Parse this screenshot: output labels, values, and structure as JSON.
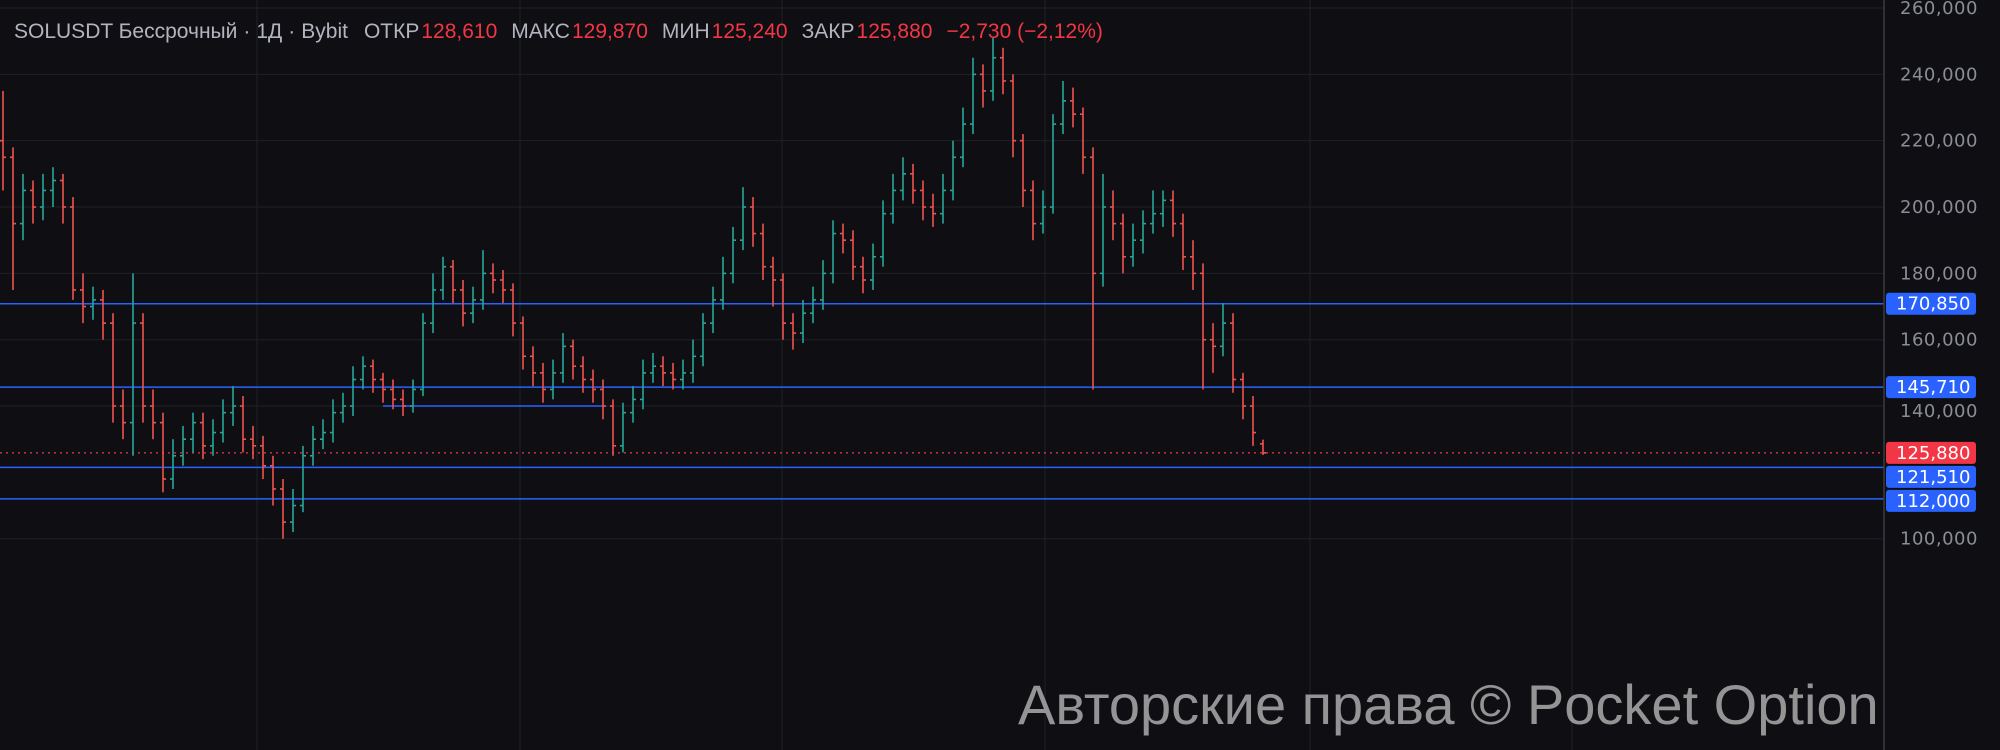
{
  "header": {
    "symbol": "SOLUSDT Бессрочный",
    "interval": "1Д",
    "exchange": "Bybit",
    "sep": "·",
    "open_label": "ОТКР",
    "open": "128,610",
    "high_label": "МАКС",
    "high": "129,870",
    "low_label": "МИН",
    "low": "125,240",
    "close_label": "ЗАКР",
    "close": "125,880",
    "change": "−2,730 (−2,12%)"
  },
  "watermark": "Авторские права © Pocket Option",
  "colors": {
    "up": "#26a69a",
    "down": "#ef5350",
    "level": "#2962ff",
    "last": "#f23645",
    "background": "#0f0f13",
    "grid": "#1f2026"
  },
  "chart_data": {
    "type": "ohlc",
    "ylim": [
      95000,
      262000
    ],
    "grid": true,
    "y_ticks": [
      100000,
      140000,
      160000,
      180000,
      200000,
      220000,
      240000,
      260000
    ],
    "y_tick_labels": [
      "100,000",
      "140,000",
      "160,000",
      "180,000",
      "200,000",
      "220,000",
      "240,000",
      "260,000"
    ],
    "levels": [
      {
        "value": 170850,
        "label": "170,850"
      },
      {
        "value": 145710,
        "label": "145,710"
      },
      {
        "value": 121510,
        "label": "121,510"
      },
      {
        "value": 112000,
        "label": "112,000"
      }
    ],
    "segment_level": {
      "value": 140000,
      "from_bar": 38,
      "to_bar": 60
    },
    "last_price": {
      "value": 125880,
      "label": "125,880"
    },
    "ohlc": [
      [
        220000,
        235000,
        205000,
        215000
      ],
      [
        215000,
        218000,
        175000,
        195000
      ],
      [
        195000,
        210000,
        190000,
        205000
      ],
      [
        205000,
        208000,
        195000,
        200000
      ],
      [
        200000,
        210000,
        196000,
        205000
      ],
      [
        205000,
        212000,
        200000,
        208000
      ],
      [
        208000,
        210000,
        195000,
        200000
      ],
      [
        200000,
        203000,
        172000,
        175000
      ],
      [
        175000,
        180000,
        165000,
        170000
      ],
      [
        170000,
        176000,
        166000,
        172000
      ],
      [
        172000,
        175000,
        160000,
        165000
      ],
      [
        165000,
        168000,
        135000,
        140000
      ],
      [
        140000,
        145000,
        130000,
        135000
      ],
      [
        135000,
        180000,
        125000,
        165000
      ],
      [
        165000,
        168000,
        135000,
        140000
      ],
      [
        140000,
        145000,
        130000,
        135000
      ],
      [
        135000,
        138000,
        114000,
        118000
      ],
      [
        118000,
        130000,
        115000,
        125000
      ],
      [
        125000,
        134000,
        122000,
        130000
      ],
      [
        130000,
        138000,
        126000,
        135000
      ],
      [
        135000,
        138000,
        124000,
        128000
      ],
      [
        128000,
        136000,
        125000,
        132000
      ],
      [
        132000,
        142000,
        129000,
        138000
      ],
      [
        138000,
        146000,
        134000,
        140000
      ],
      [
        140000,
        143000,
        126000,
        130000
      ],
      [
        130000,
        134000,
        124000,
        128000
      ],
      [
        128000,
        131000,
        118000,
        122000
      ],
      [
        122000,
        125000,
        110000,
        115000
      ],
      [
        115000,
        118000,
        100000,
        105000
      ],
      [
        105000,
        115000,
        102000,
        110000
      ],
      [
        110000,
        128000,
        108000,
        125000
      ],
      [
        125000,
        134000,
        122000,
        130000
      ],
      [
        130000,
        136000,
        127000,
        132000
      ],
      [
        132000,
        142000,
        129000,
        138000
      ],
      [
        138000,
        144000,
        135000,
        140000
      ],
      [
        140000,
        152000,
        137000,
        148000
      ],
      [
        148000,
        155000,
        145000,
        152000
      ],
      [
        152000,
        154000,
        144000,
        148000
      ],
      [
        148000,
        150000,
        141000,
        145000
      ],
      [
        145000,
        148000,
        139000,
        142000
      ],
      [
        142000,
        145000,
        137000,
        140000
      ],
      [
        140000,
        148000,
        138000,
        145000
      ],
      [
        145000,
        168000,
        143000,
        165000
      ],
      [
        165000,
        180000,
        162000,
        175000
      ],
      [
        175000,
        185000,
        172000,
        182000
      ],
      [
        182000,
        184000,
        171000,
        175000
      ],
      [
        175000,
        178000,
        164000,
        168000
      ],
      [
        168000,
        176000,
        165000,
        172000
      ],
      [
        172000,
        187000,
        169000,
        180000
      ],
      [
        180000,
        183000,
        174000,
        178000
      ],
      [
        178000,
        181000,
        171000,
        175000
      ],
      [
        175000,
        177000,
        161000,
        165000
      ],
      [
        165000,
        167000,
        151000,
        155000
      ],
      [
        155000,
        158000,
        146000,
        150000
      ],
      [
        150000,
        153000,
        141000,
        145000
      ],
      [
        145000,
        154000,
        142000,
        150000
      ],
      [
        150000,
        162000,
        147000,
        158000
      ],
      [
        158000,
        160000,
        148000,
        152000
      ],
      [
        152000,
        155000,
        144000,
        148000
      ],
      [
        148000,
        151000,
        141000,
        145000
      ],
      [
        145000,
        148000,
        136000,
        140000
      ],
      [
        140000,
        142000,
        125000,
        128000
      ],
      [
        128000,
        141000,
        126000,
        138000
      ],
      [
        138000,
        146000,
        135000,
        142000
      ],
      [
        142000,
        154000,
        139000,
        150000
      ],
      [
        150000,
        156000,
        147000,
        152000
      ],
      [
        152000,
        155000,
        146000,
        150000
      ],
      [
        150000,
        153000,
        145000,
        148000
      ],
      [
        148000,
        154000,
        145000,
        150000
      ],
      [
        150000,
        160000,
        147000,
        155000
      ],
      [
        155000,
        168000,
        152000,
        165000
      ],
      [
        165000,
        176000,
        162000,
        172000
      ],
      [
        172000,
        185000,
        169000,
        180000
      ],
      [
        180000,
        194000,
        177000,
        190000
      ],
      [
        190000,
        206000,
        187000,
        200000
      ],
      [
        200000,
        203000,
        188000,
        192000
      ],
      [
        192000,
        195000,
        178000,
        182000
      ],
      [
        182000,
        185000,
        170000,
        178000
      ],
      [
        178000,
        180000,
        160000,
        165000
      ],
      [
        165000,
        168000,
        157000,
        162000
      ],
      [
        162000,
        172000,
        159000,
        168000
      ],
      [
        168000,
        176000,
        165000,
        172000
      ],
      [
        172000,
        184000,
        169000,
        180000
      ],
      [
        180000,
        196000,
        177000,
        192000
      ],
      [
        192000,
        195000,
        186000,
        190000
      ],
      [
        190000,
        193000,
        178000,
        182000
      ],
      [
        182000,
        185000,
        174000,
        178000
      ],
      [
        178000,
        189000,
        175000,
        185000
      ],
      [
        185000,
        202000,
        182000,
        198000
      ],
      [
        198000,
        210000,
        195000,
        205000
      ],
      [
        205000,
        215000,
        202000,
        210000
      ],
      [
        210000,
        213000,
        201000,
        205000
      ],
      [
        205000,
        208000,
        196000,
        200000
      ],
      [
        200000,
        204000,
        194000,
        198000
      ],
      [
        198000,
        210000,
        195000,
        205000
      ],
      [
        205000,
        220000,
        202000,
        215000
      ],
      [
        215000,
        230000,
        212000,
        225000
      ],
      [
        225000,
        245000,
        222000,
        240000
      ],
      [
        240000,
        243000,
        230000,
        235000
      ],
      [
        235000,
        251000,
        232000,
        245000
      ],
      [
        245000,
        248000,
        234000,
        238000
      ],
      [
        238000,
        240000,
        215000,
        220000
      ],
      [
        220000,
        222000,
        200000,
        205000
      ],
      [
        205000,
        208000,
        190000,
        195000
      ],
      [
        195000,
        205000,
        192000,
        200000
      ],
      [
        200000,
        228000,
        198000,
        225000
      ],
      [
        225000,
        238000,
        222000,
        232000
      ],
      [
        232000,
        236000,
        224000,
        228000
      ],
      [
        228000,
        230000,
        210000,
        215000
      ],
      [
        215000,
        218000,
        145000,
        180000
      ],
      [
        180000,
        210000,
        176000,
        200000
      ],
      [
        200000,
        205000,
        190000,
        195000
      ],
      [
        195000,
        198000,
        180000,
        185000
      ],
      [
        185000,
        195000,
        182000,
        190000
      ],
      [
        190000,
        199000,
        186000,
        195000
      ],
      [
        195000,
        205000,
        192000,
        198000
      ],
      [
        198000,
        205000,
        194000,
        202000
      ],
      [
        202000,
        205000,
        191000,
        195000
      ],
      [
        195000,
        198000,
        181000,
        185000
      ],
      [
        185000,
        190000,
        175000,
        180000
      ],
      [
        180000,
        183000,
        145000,
        160000
      ],
      [
        160000,
        165000,
        150000,
        158000
      ],
      [
        158000,
        171000,
        155000,
        165000
      ],
      [
        165000,
        168000,
        144000,
        148000
      ],
      [
        148000,
        150000,
        136000,
        140000
      ],
      [
        140000,
        143000,
        128000,
        132000
      ],
      [
        128610,
        129870,
        125240,
        125880
      ]
    ]
  }
}
